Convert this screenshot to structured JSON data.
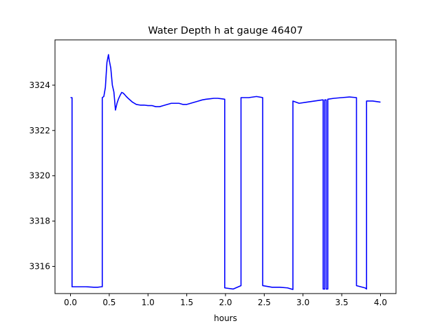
{
  "chart_data": {
    "type": "line",
    "title": "Water Depth h at gauge 46407",
    "xlabel": "hours",
    "ylabel": "",
    "xlim": [
      -0.2,
      4.2
    ],
    "ylim": [
      3314.8,
      3326.0
    ],
    "xticks": [
      0.0,
      0.5,
      1.0,
      1.5,
      2.0,
      2.5,
      3.0,
      3.5,
      4.0
    ],
    "xtick_labels": [
      "0.0",
      "0.5",
      "1.0",
      "1.5",
      "2.0",
      "2.5",
      "3.0",
      "3.5",
      "4.0"
    ],
    "yticks": [
      3316,
      3318,
      3320,
      3322,
      3324
    ],
    "ytick_labels": [
      "3316",
      "3318",
      "3320",
      "3322",
      "3324"
    ],
    "grid": false,
    "series": [
      {
        "color": "#0000ff",
        "x": [
          0.0,
          0.02,
          0.02,
          0.1,
          0.2,
          0.3,
          0.35,
          0.4,
          0.41,
          0.41,
          0.43,
          0.45,
          0.47,
          0.49,
          0.5,
          0.52,
          0.54,
          0.56,
          0.58,
          0.6,
          0.62,
          0.64,
          0.66,
          0.68,
          0.7,
          0.72,
          0.75,
          0.8,
          0.85,
          0.9,
          0.95,
          1.0,
          1.05,
          1.1,
          1.15,
          1.2,
          1.25,
          1.3,
          1.35,
          1.4,
          1.45,
          1.5,
          1.55,
          1.6,
          1.65,
          1.7,
          1.75,
          1.8,
          1.85,
          1.9,
          1.95,
          1.99,
          1.99,
          2.1,
          2.2,
          2.2,
          2.3,
          2.4,
          2.48,
          2.48,
          2.6,
          2.7,
          2.8,
          2.87,
          2.87,
          2.95,
          3.05,
          3.15,
          3.25,
          3.26,
          3.26,
          3.28,
          3.28,
          3.3,
          3.3,
          3.32,
          3.32,
          3.4,
          3.5,
          3.6,
          3.69,
          3.69,
          3.8,
          3.82,
          3.82,
          3.9,
          4.0
        ],
        "y": [
          3323.45,
          3323.45,
          3315.1,
          3315.1,
          3315.1,
          3315.08,
          3315.08,
          3315.1,
          3315.1,
          3323.45,
          3323.5,
          3323.9,
          3325.0,
          3325.35,
          3325.1,
          3324.75,
          3324.0,
          3323.7,
          3322.9,
          3323.2,
          3323.4,
          3323.55,
          3323.68,
          3323.65,
          3323.58,
          3323.5,
          3323.4,
          3323.25,
          3323.15,
          3323.12,
          3323.12,
          3323.1,
          3323.1,
          3323.05,
          3323.05,
          3323.1,
          3323.15,
          3323.2,
          3323.2,
          3323.2,
          3323.15,
          3323.15,
          3323.2,
          3323.25,
          3323.3,
          3323.35,
          3323.38,
          3323.4,
          3323.42,
          3323.42,
          3323.4,
          3323.38,
          3315.05,
          3315.0,
          3315.15,
          3323.45,
          3323.45,
          3323.5,
          3323.45,
          3315.15,
          3315.08,
          3315.08,
          3315.05,
          3314.98,
          3323.3,
          3323.2,
          3323.25,
          3323.3,
          3323.35,
          3323.35,
          3315.0,
          3315.0,
          3323.35,
          3323.35,
          3315.0,
          3315.0,
          3323.38,
          3323.42,
          3323.45,
          3323.48,
          3323.45,
          3315.15,
          3315.05,
          3315.0,
          3323.3,
          3323.3,
          3323.25
        ]
      }
    ]
  }
}
